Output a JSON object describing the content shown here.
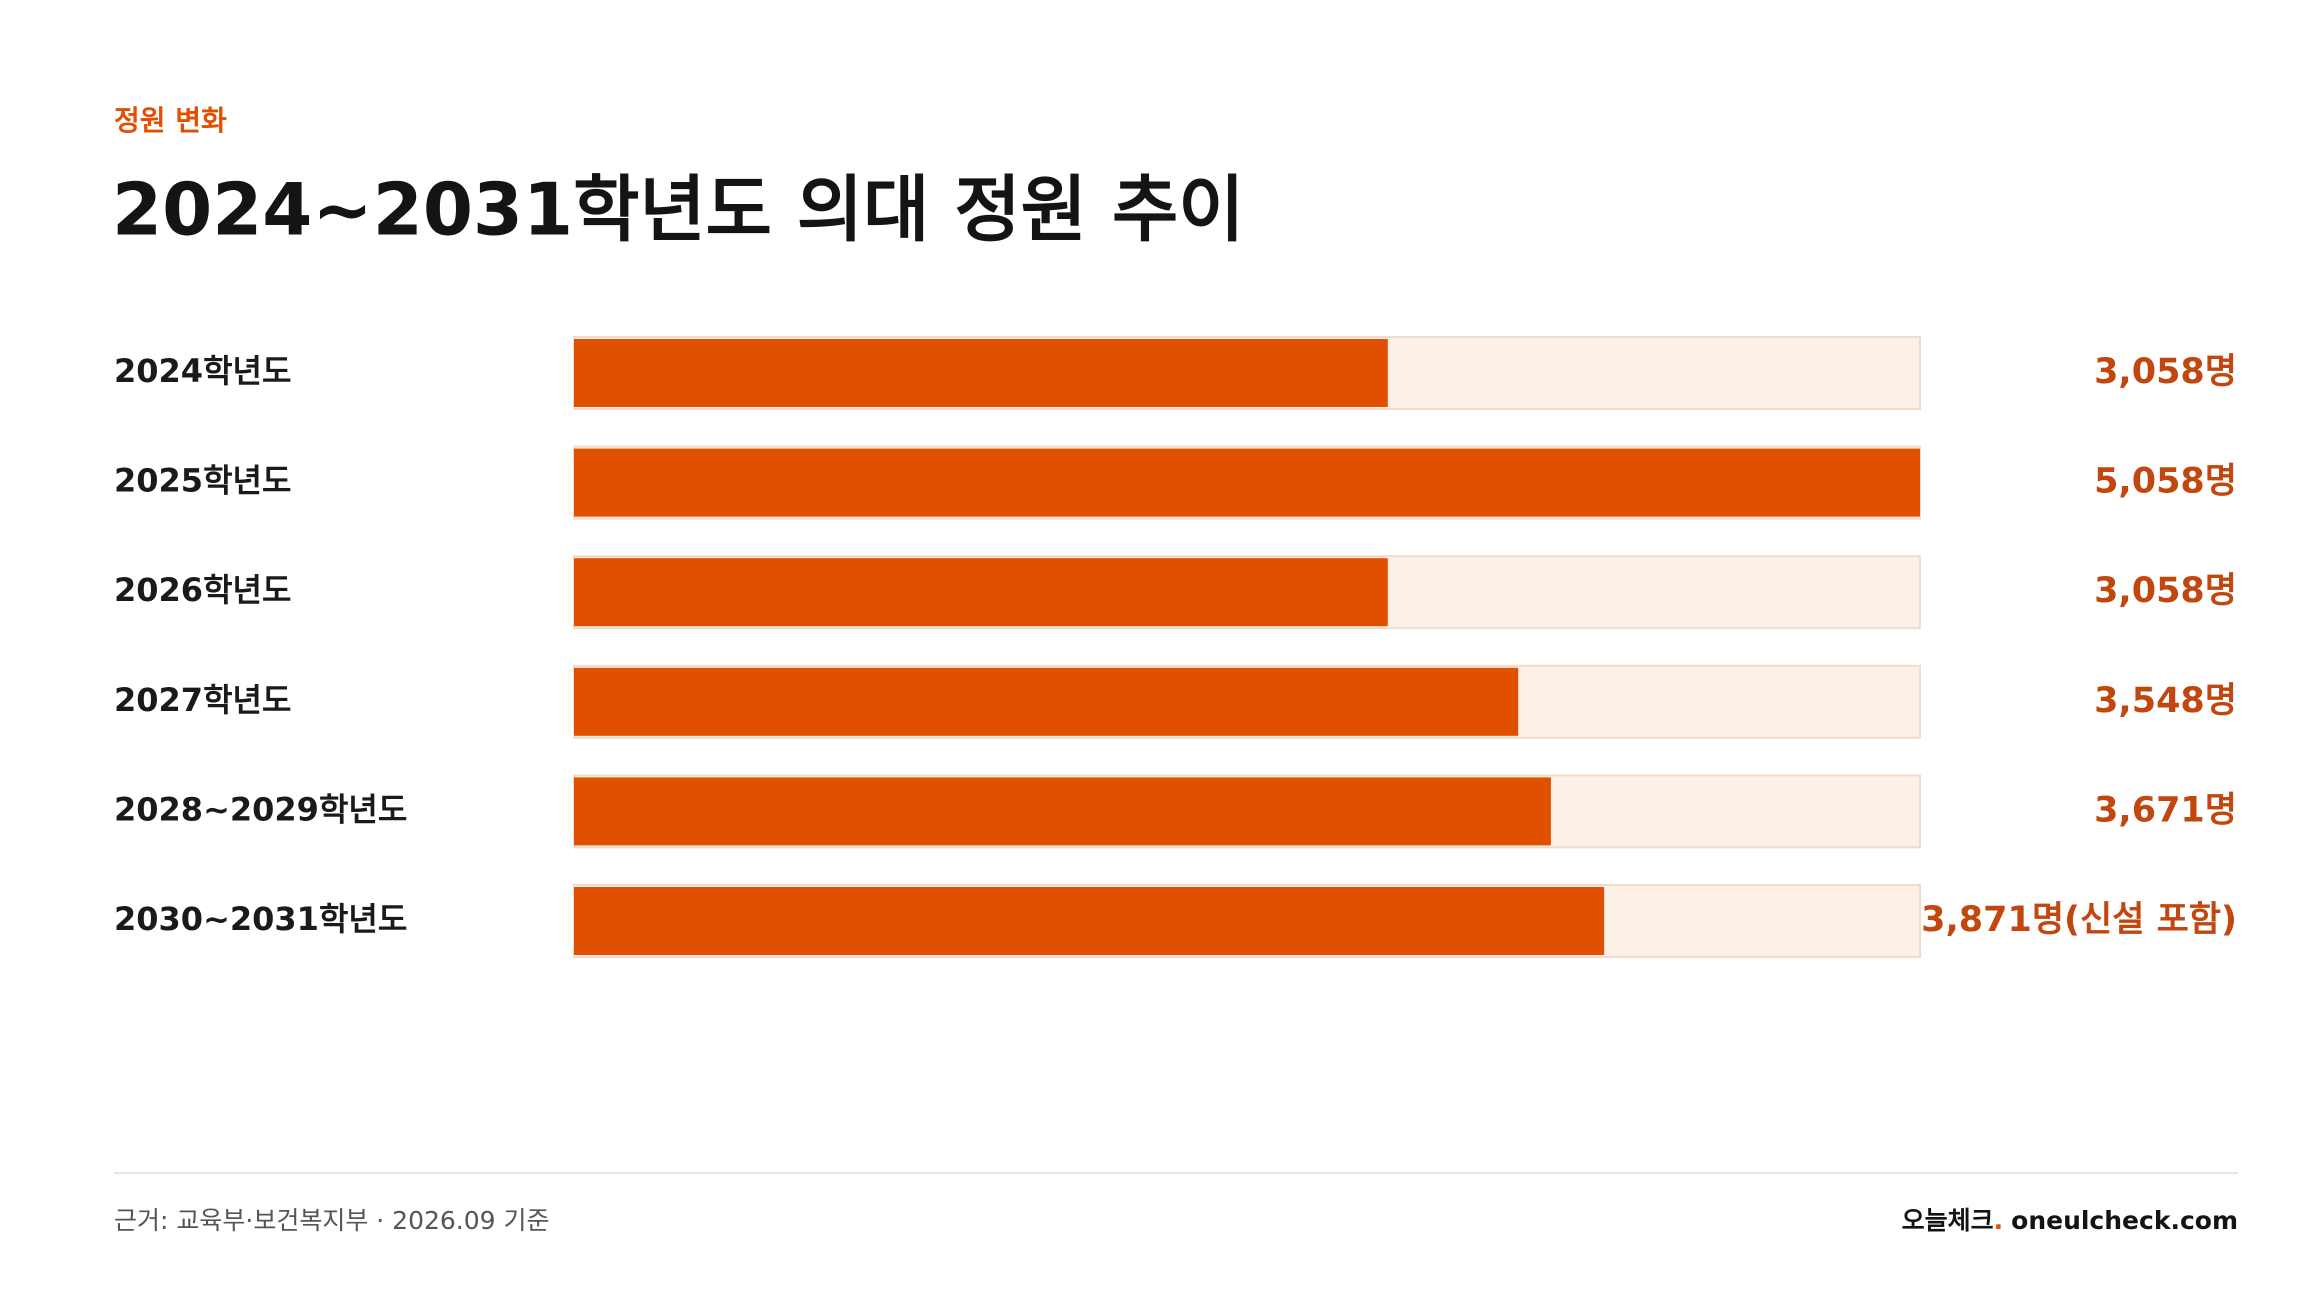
{
  "chart_data": {
    "type": "bar",
    "orientation": "horizontal",
    "eyebrow": "정원 변화",
    "title": "2024~2031학년도 의대 정원 추이",
    "categories": [
      "2024학년도",
      "2025학년도",
      "2026학년도",
      "2027학년도",
      "2028~2029학년도",
      "2030~2031학년도"
    ],
    "values": [
      3058,
      5058,
      3058,
      3548,
      3671,
      3871
    ],
    "value_labels": [
      "3,058명",
      "5,058명",
      "3,058명",
      "3,548명",
      "3,671명",
      "3,871명(신설 포함)"
    ],
    "xlim": [
      0,
      5058
    ],
    "color": "#e05000",
    "track_color": "#fdf0e6",
    "source": "근거: 교육부·보건복지부 · 2026.09 기준",
    "brand": {
      "name": "오늘체크",
      "dot": ".",
      "url": "oneulcheck.com"
    }
  }
}
